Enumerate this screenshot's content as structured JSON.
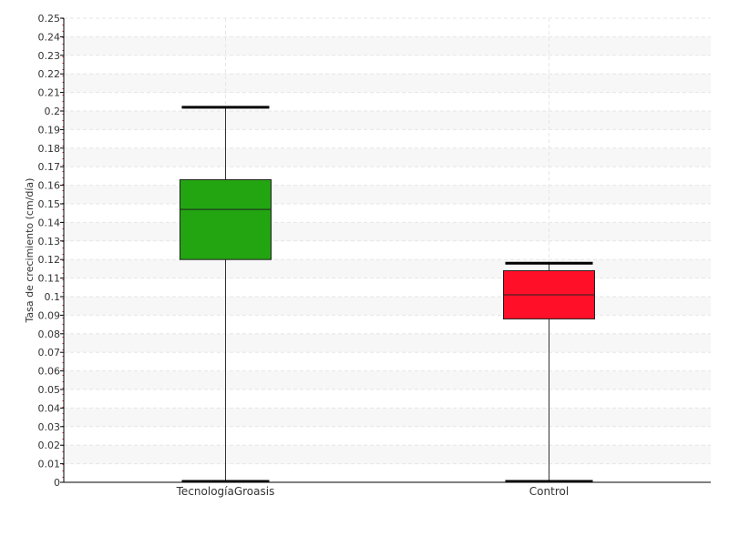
{
  "chart_data": {
    "type": "box",
    "title": "",
    "xlabel": "",
    "ylabel": "Tasa de crecimiento (cm/día)",
    "ylim": [
      0,
      0.25
    ],
    "ytick_step": 0.01,
    "grid": true,
    "categories": [
      "TecnologíaGroasis",
      "Control"
    ],
    "boxes": [
      {
        "category": "TecnologíaGroasis",
        "whisker_low": 0,
        "q1": 0.12,
        "median": 0.147,
        "q3": 0.163,
        "whisker_high": 0.202,
        "color": "#22a511"
      },
      {
        "category": "Control",
        "whisker_low": 0,
        "q1": 0.088,
        "median": 0.101,
        "q3": 0.114,
        "whisker_high": 0.118,
        "color": "#ff1028"
      }
    ]
  }
}
